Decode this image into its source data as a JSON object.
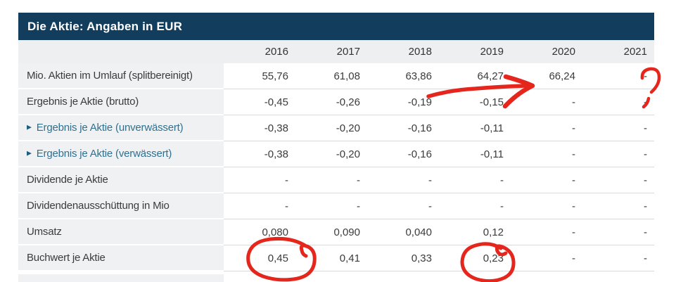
{
  "table": {
    "title": "Die Aktie: Angaben in EUR",
    "columns": [
      "2016",
      "2017",
      "2018",
      "2019",
      "2020",
      "2021"
    ],
    "rows": [
      {
        "label": "Mio. Aktien im Umlauf (splitbereinigt)",
        "link": false,
        "values": [
          "55,76",
          "61,08",
          "63,86",
          "64,27",
          "66,24",
          "-"
        ]
      },
      {
        "label": "Ergebnis je Aktie (brutto)",
        "link": false,
        "values": [
          "-0,45",
          "-0,26",
          "-0,19",
          "-0,15",
          "-",
          "-"
        ]
      },
      {
        "label": "Ergebnis je Aktie (unverwässert)",
        "link": true,
        "values": [
          "-0,38",
          "-0,20",
          "-0,16",
          "-0,11",
          "-",
          "-"
        ]
      },
      {
        "label": "Ergebnis je Aktie (verwässert)",
        "link": true,
        "values": [
          "-0,38",
          "-0,20",
          "-0,16",
          "-0,11",
          "-",
          "-"
        ]
      },
      {
        "label": "Dividende je Aktie",
        "link": false,
        "values": [
          "-",
          "-",
          "-",
          "-",
          "-",
          "-"
        ]
      },
      {
        "label": "Dividendenausschüttung in Mio",
        "link": false,
        "values": [
          "-",
          "-",
          "-",
          "-",
          "-",
          "-"
        ]
      },
      {
        "label": "Umsatz",
        "link": false,
        "values": [
          "0,080",
          "0,090",
          "0,040",
          "0,12",
          "-",
          "-"
        ]
      },
      {
        "label": "Buchwert je Aktie",
        "link": false,
        "values": [
          "0,45",
          "0,41",
          "0,33",
          "0,23",
          "-",
          "-"
        ]
      }
    ]
  },
  "chart_data": {
    "type": "table",
    "title": "Die Aktie: Angaben in EUR",
    "categories": [
      "2016",
      "2017",
      "2018",
      "2019",
      "2020",
      "2021"
    ],
    "series": [
      {
        "name": "Mio. Aktien im Umlauf (splitbereinigt)",
        "values": [
          55.76,
          61.08,
          63.86,
          64.27,
          66.24,
          null
        ]
      },
      {
        "name": "Ergebnis je Aktie (brutto)",
        "values": [
          -0.45,
          -0.26,
          -0.19,
          -0.15,
          null,
          null
        ]
      },
      {
        "name": "Ergebnis je Aktie (unverwässert)",
        "values": [
          -0.38,
          -0.2,
          -0.16,
          -0.11,
          null,
          null
        ]
      },
      {
        "name": "Ergebnis je Aktie (verwässert)",
        "values": [
          -0.38,
          -0.2,
          -0.16,
          -0.11,
          null,
          null
        ]
      },
      {
        "name": "Dividende je Aktie",
        "values": [
          null,
          null,
          null,
          null,
          null,
          null
        ]
      },
      {
        "name": "Dividendenausschüttung in Mio",
        "values": [
          null,
          null,
          null,
          null,
          null,
          null
        ]
      },
      {
        "name": "Umsatz",
        "values": [
          0.08,
          0.09,
          0.04,
          0.12,
          null,
          null
        ]
      },
      {
        "name": "Buchwert je Aktie",
        "values": [
          0.45,
          0.41,
          0.33,
          0.23,
          null,
          null
        ]
      }
    ]
  },
  "icons": {
    "expand_triangle": "▶"
  },
  "annotations": {
    "color": "#e5261d",
    "items": [
      {
        "name": "arrow-annotation",
        "meaning": "hand-drawn arrow pointing from 64,27 (2019) toward 66,24 (2020) in row 'Mio. Aktien im Umlauf'"
      },
      {
        "name": "question-mark-annotation",
        "meaning": "hand-drawn question mark next to the 2021 dash in row 'Mio. Aktien im Umlauf'"
      },
      {
        "name": "circle-annotation-book-value-2016",
        "meaning": "hand-drawn circle around 0,45 (Buchwert je Aktie, 2016)"
      },
      {
        "name": "circle-annotation-book-value-2019",
        "meaning": "hand-drawn circle around 0,23 (Buchwert je Aktie, 2019)"
      }
    ]
  },
  "colors": {
    "title_bar": "#123d5c",
    "header_row": "#edeff1",
    "label_cell": "#eff1f3",
    "separator": "#d7d9da",
    "link_text": "#2f7190",
    "body_text": "#3b3b3b",
    "annotation_red": "#e5261d"
  }
}
